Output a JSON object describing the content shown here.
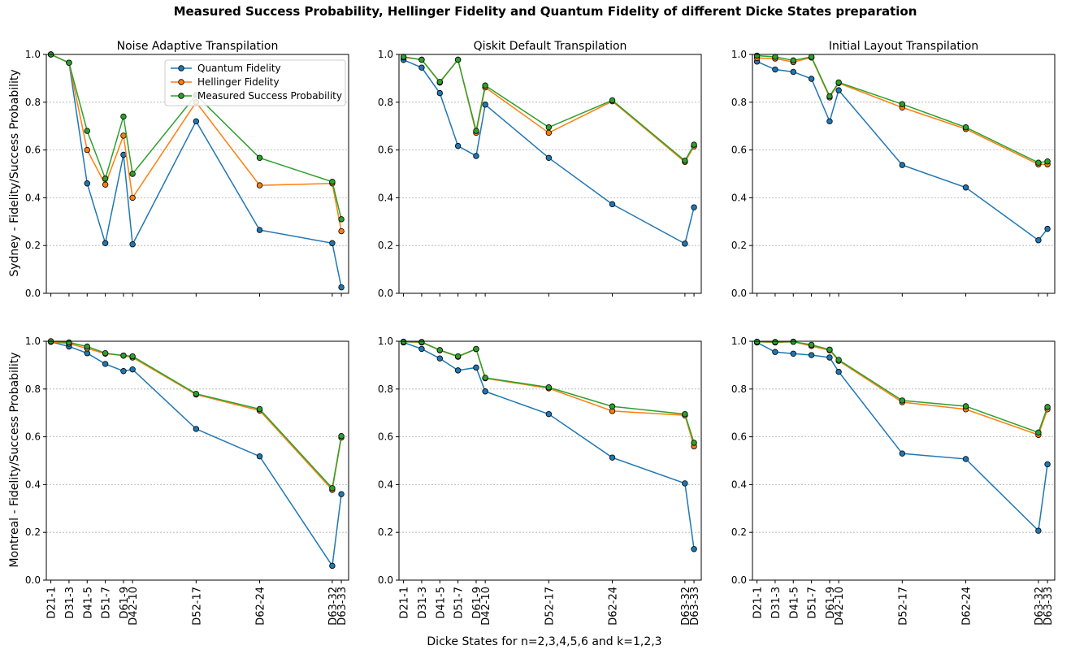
{
  "figure": {
    "title": "Measured Success Probability, Hellinger Fidelity and Quantum Fidelity of different Dicke States preparation",
    "xlabel": "Dicke States for n=2,3,4,5,6 and k=1,2,3",
    "row_ylabels": [
      "Sydney - Fidelity/Success Probability",
      "Montreal - Fidelity/Success Probability"
    ],
    "column_titles": [
      "Noise Adaptive Transpilation",
      "Qiskit Default Transpilation",
      "Initial Layout Transpilation"
    ]
  },
  "chart_data": {
    "type": "line",
    "x_categories": [
      "D21-1",
      "D31-3",
      "D41-5",
      "D51-7",
      "D61-9",
      "D42-10",
      "D52-17",
      "D62-24",
      "D63-32",
      "D63-33"
    ],
    "x_positions": [
      1,
      3,
      5,
      7,
      9,
      10,
      17,
      24,
      32,
      33
    ],
    "ylim": [
      0,
      1
    ],
    "yticks": [
      "0.0",
      "0.2",
      "0.4",
      "0.6",
      "0.8",
      "1.0"
    ],
    "grid": "horizontal-dotted",
    "series_names": [
      "Quantum Fidelity",
      "Hellinger Fidelity",
      "Measured Success Probability"
    ],
    "colors": [
      "#1f77b4",
      "#ff7f0e",
      "#2ca02c"
    ],
    "legend_location": "upper right of first subplot",
    "subplots": [
      {
        "row": 0,
        "col": 0,
        "show_legend": true,
        "series": [
          {
            "name": "Quantum Fidelity",
            "values": [
              1.0,
              0.965,
              0.46,
              0.21,
              0.58,
              0.205,
              0.72,
              0.265,
              0.21,
              0.025
            ]
          },
          {
            "name": "Hellinger Fidelity",
            "values": [
              1.0,
              0.965,
              0.6,
              0.455,
              0.66,
              0.4,
              0.8,
              0.452,
              0.46,
              0.26
            ]
          },
          {
            "name": "Measured Success Probability",
            "values": [
              1.0,
              0.965,
              0.68,
              0.48,
              0.74,
              0.5,
              0.83,
              0.567,
              0.467,
              0.31
            ]
          }
        ]
      },
      {
        "row": 0,
        "col": 1,
        "show_legend": false,
        "series": [
          {
            "name": "Quantum Fidelity",
            "values": [
              0.977,
              0.945,
              0.838,
              0.617,
              0.575,
              0.79,
              0.567,
              0.373,
              0.208,
              0.36
            ]
          },
          {
            "name": "Hellinger Fidelity",
            "values": [
              0.988,
              0.978,
              0.882,
              0.978,
              0.672,
              0.862,
              0.672,
              0.804,
              0.55,
              0.615
            ]
          },
          {
            "name": "Measured Success Probability",
            "values": [
              0.99,
              0.978,
              0.885,
              0.978,
              0.68,
              0.87,
              0.695,
              0.808,
              0.555,
              0.622
            ]
          }
        ]
      },
      {
        "row": 0,
        "col": 2,
        "show_legend": false,
        "series": [
          {
            "name": "Quantum Fidelity",
            "values": [
              0.97,
              0.937,
              0.927,
              0.898,
              0.72,
              0.85,
              0.537,
              0.443,
              0.222,
              0.27
            ]
          },
          {
            "name": "Hellinger Fidelity",
            "values": [
              0.985,
              0.983,
              0.968,
              0.987,
              0.82,
              0.88,
              0.778,
              0.688,
              0.54,
              0.54
            ]
          },
          {
            "name": "Measured Success Probability",
            "values": [
              0.995,
              0.99,
              0.975,
              0.99,
              0.825,
              0.883,
              0.792,
              0.695,
              0.547,
              0.552
            ]
          }
        ]
      },
      {
        "row": 1,
        "col": 0,
        "show_legend": false,
        "series": [
          {
            "name": "Quantum Fidelity",
            "values": [
              0.998,
              0.978,
              0.95,
              0.905,
              0.875,
              0.882,
              0.633,
              0.518,
              0.06,
              0.36
            ]
          },
          {
            "name": "Hellinger Fidelity",
            "values": [
              0.998,
              0.99,
              0.97,
              0.948,
              0.94,
              0.932,
              0.777,
              0.71,
              0.378,
              0.597
            ]
          },
          {
            "name": "Measured Success Probability",
            "values": [
              1.0,
              0.995,
              0.978,
              0.95,
              0.94,
              0.937,
              0.78,
              0.716,
              0.385,
              0.603
            ]
          }
        ]
      },
      {
        "row": 1,
        "col": 1,
        "show_legend": false,
        "series": [
          {
            "name": "Quantum Fidelity",
            "values": [
              0.995,
              0.968,
              0.928,
              0.878,
              0.89,
              0.79,
              0.695,
              0.513,
              0.405,
              0.13
            ]
          },
          {
            "name": "Hellinger Fidelity",
            "values": [
              0.998,
              0.995,
              0.962,
              0.935,
              0.967,
              0.845,
              0.803,
              0.708,
              0.69,
              0.56
            ]
          },
          {
            "name": "Measured Success Probability",
            "values": [
              0.998,
              0.997,
              0.963,
              0.937,
              0.968,
              0.847,
              0.807,
              0.727,
              0.695,
              0.575
            ]
          }
        ]
      },
      {
        "row": 1,
        "col": 2,
        "show_legend": false,
        "series": [
          {
            "name": "Quantum Fidelity",
            "values": [
              0.995,
              0.955,
              0.948,
              0.942,
              0.932,
              0.872,
              0.53,
              0.507,
              0.207,
              0.485
            ]
          },
          {
            "name": "Hellinger Fidelity",
            "values": [
              0.998,
              0.995,
              0.998,
              0.98,
              0.962,
              0.918,
              0.745,
              0.715,
              0.608,
              0.715
            ]
          },
          {
            "name": "Measured Success Probability",
            "values": [
              0.998,
              0.997,
              0.998,
              0.985,
              0.965,
              0.922,
              0.752,
              0.728,
              0.618,
              0.725
            ]
          }
        ]
      }
    ]
  }
}
